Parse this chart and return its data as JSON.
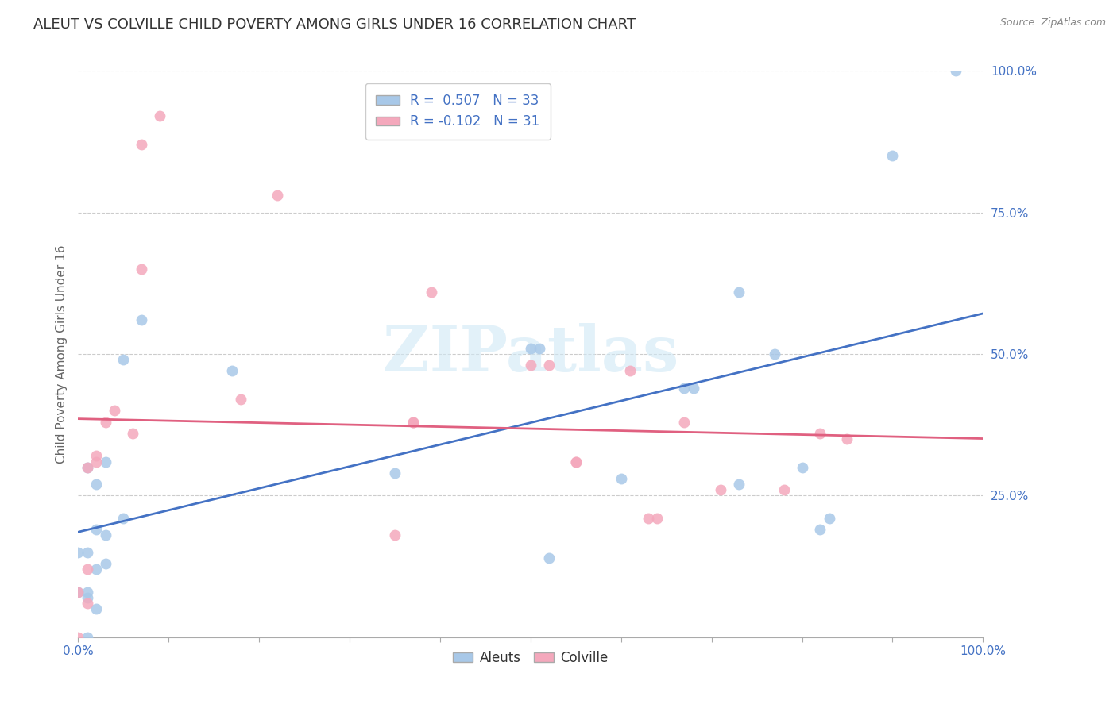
{
  "title": "ALEUT VS COLVILLE CHILD POVERTY AMONG GIRLS UNDER 16 CORRELATION CHART",
  "source": "Source: ZipAtlas.com",
  "ylabel": "Child Poverty Among Girls Under 16",
  "xlim": [
    0,
    1
  ],
  "ylim": [
    0,
    1
  ],
  "yticks": [
    0,
    0.25,
    0.5,
    0.75,
    1.0
  ],
  "ytick_labels": [
    "",
    "25.0%",
    "50.0%",
    "75.0%",
    "100.0%"
  ],
  "legend_label1": "R =  0.507   N = 33",
  "legend_label2": "R = -0.102   N = 31",
  "aleuts_color": "#a8c8e8",
  "colville_color": "#f4a8bc",
  "aleuts_line_color": "#4472c4",
  "colville_line_color": "#e06080",
  "ytick_color": "#4472c4",
  "xtick_color": "#4472c4",
  "watermark_color": "#d0e8f5",
  "background_color": "#ffffff",
  "grid_color": "#cccccc",
  "title_fontsize": 13,
  "axis_label_fontsize": 11,
  "tick_fontsize": 11,
  "marker_size": 100,
  "aleuts_x": [
    0.02,
    0.03,
    0.01,
    0.0,
    0.01,
    0.02,
    0.01,
    0.03,
    0.02,
    0.01,
    0.01,
    0.0,
    0.05,
    0.02,
    0.03,
    0.05,
    0.07,
    0.17,
    0.35,
    0.5,
    0.51,
    0.52,
    0.6,
    0.67,
    0.68,
    0.73,
    0.73,
    0.77,
    0.8,
    0.82,
    0.83,
    0.9,
    0.97
  ],
  "aleuts_y": [
    0.05,
    0.18,
    0.07,
    0.08,
    0.15,
    0.27,
    0.3,
    0.31,
    0.12,
    0.08,
    0.0,
    0.15,
    0.21,
    0.19,
    0.13,
    0.49,
    0.56,
    0.47,
    0.29,
    0.51,
    0.51,
    0.14,
    0.28,
    0.44,
    0.44,
    0.27,
    0.61,
    0.5,
    0.3,
    0.19,
    0.21,
    0.85,
    1.0
  ],
  "colville_x": [
    0.0,
    0.01,
    0.0,
    0.01,
    0.01,
    0.02,
    0.02,
    0.03,
    0.04,
    0.06,
    0.07,
    0.07,
    0.09,
    0.18,
    0.22,
    0.35,
    0.37,
    0.37,
    0.39,
    0.5,
    0.52,
    0.55,
    0.55,
    0.61,
    0.63,
    0.64,
    0.67,
    0.71,
    0.78,
    0.82,
    0.85
  ],
  "colville_y": [
    0.0,
    0.06,
    0.08,
    0.12,
    0.3,
    0.31,
    0.32,
    0.38,
    0.4,
    0.36,
    0.65,
    0.87,
    0.92,
    0.42,
    0.78,
    0.18,
    0.38,
    0.38,
    0.61,
    0.48,
    0.48,
    0.31,
    0.31,
    0.47,
    0.21,
    0.21,
    0.38,
    0.26,
    0.26,
    0.36,
    0.35
  ]
}
